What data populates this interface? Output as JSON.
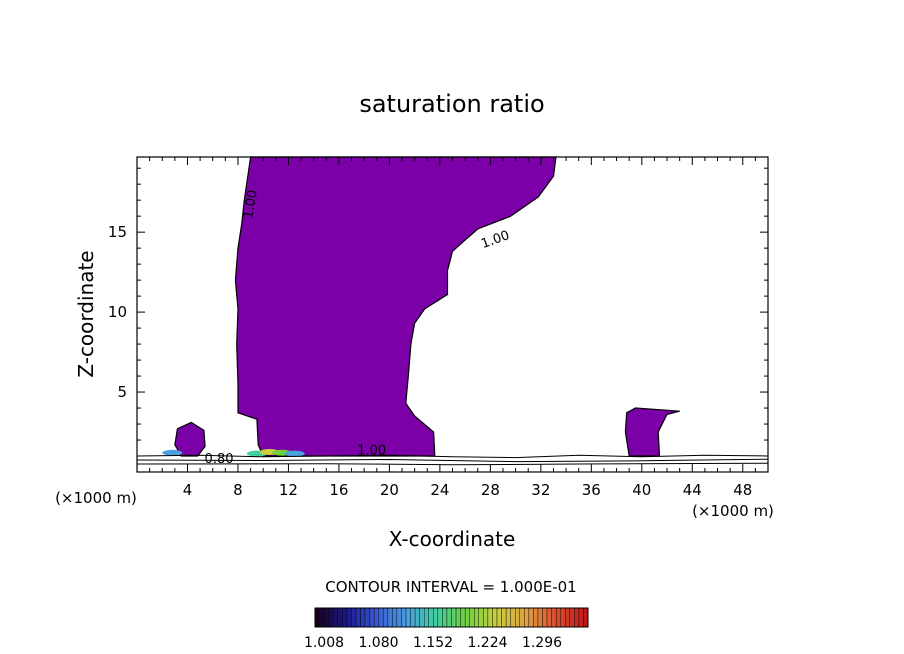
{
  "chart_data": {
    "type": "heatmap",
    "title": "saturation ratio",
    "xlabel": "X-coordinate",
    "ylabel": "Z-coordinate",
    "x_unit_left": "(×1000 m)",
    "x_unit_right": "(×1000 m)",
    "xlim": [
      0,
      50
    ],
    "ylim": [
      0,
      19.7
    ],
    "x_ticks": [
      4,
      8,
      12,
      16,
      20,
      24,
      28,
      32,
      36,
      40,
      44,
      48
    ],
    "y_ticks": [
      5,
      10,
      15
    ],
    "contour_interval_text": "CONTOUR INTERVAL = 1.000E-01",
    "contour_labels": [
      "1.00",
      "1.00",
      "1.00",
      "0.80"
    ],
    "colorbar": {
      "tick_labels": [
        "1.008",
        "1.080",
        "1.152",
        "1.224",
        "1.296"
      ],
      "colors": [
        "#1a0020",
        "#1a1a8c",
        "#3a5ad0",
        "#4aa0e0",
        "#40d0a0",
        "#70d040",
        "#c8d040",
        "#e0a040",
        "#d85030",
        "#c01818"
      ]
    },
    "fill_color": "#7b00a8",
    "main_region_polygon": [
      [
        9.0,
        19.7
      ],
      [
        33.2,
        19.7
      ],
      [
        33.0,
        18.5
      ],
      [
        31.8,
        17.2
      ],
      [
        29.6,
        16.0
      ],
      [
        27.0,
        15.2
      ],
      [
        26.0,
        14.5
      ],
      [
        25.0,
        13.8
      ],
      [
        24.6,
        12.6
      ],
      [
        24.6,
        11.1
      ],
      [
        23.6,
        10.6
      ],
      [
        22.8,
        10.2
      ],
      [
        22.0,
        9.3
      ],
      [
        21.7,
        8.0
      ],
      [
        21.5,
        6.0
      ],
      [
        21.3,
        4.3
      ],
      [
        22.0,
        3.5
      ],
      [
        23.5,
        2.5
      ],
      [
        23.6,
        1.0
      ],
      [
        10.0,
        1.0
      ],
      [
        9.6,
        1.7
      ],
      [
        9.5,
        3.3
      ],
      [
        8.0,
        3.7
      ],
      [
        8.0,
        5.5
      ],
      [
        7.9,
        8.0
      ],
      [
        8.0,
        10.2
      ],
      [
        7.8,
        12.0
      ],
      [
        8.0,
        14.0
      ],
      [
        8.3,
        15.5
      ],
      [
        8.5,
        17.0
      ],
      [
        9.0,
        19.7
      ]
    ],
    "side_region_polygon": [
      [
        39.0,
        1.0
      ],
      [
        38.7,
        2.5
      ],
      [
        38.8,
        3.7
      ],
      [
        39.5,
        4.0
      ],
      [
        43.0,
        3.8
      ],
      [
        42.0,
        3.6
      ],
      [
        41.3,
        2.5
      ],
      [
        41.4,
        1.0
      ]
    ],
    "small_blob_polygon": [
      [
        3.5,
        1.0
      ],
      [
        3.0,
        1.7
      ],
      [
        3.2,
        2.7
      ],
      [
        4.3,
        3.1
      ],
      [
        5.3,
        2.6
      ],
      [
        5.4,
        1.6
      ],
      [
        4.8,
        1.0
      ]
    ],
    "contour_lines": [
      [
        [
          0,
          1.0
        ],
        [
          5,
          1.05
        ],
        [
          10,
          0.95
        ],
        [
          15,
          1.0
        ],
        [
          20,
          1.05
        ],
        [
          25,
          0.95
        ],
        [
          30,
          0.9
        ],
        [
          35,
          1.05
        ],
        [
          40,
          0.95
        ],
        [
          45,
          1.05
        ],
        [
          50,
          1.0
        ]
      ],
      [
        [
          0,
          0.75
        ],
        [
          10,
          0.72
        ],
        [
          20,
          0.78
        ],
        [
          30,
          0.65
        ],
        [
          40,
          0.7
        ],
        [
          50,
          0.8
        ]
      ],
      [
        [
          0,
          0.5
        ],
        [
          15,
          0.52
        ],
        [
          25,
          0.45
        ],
        [
          35,
          0.5
        ],
        [
          50,
          0.55
        ]
      ]
    ]
  }
}
